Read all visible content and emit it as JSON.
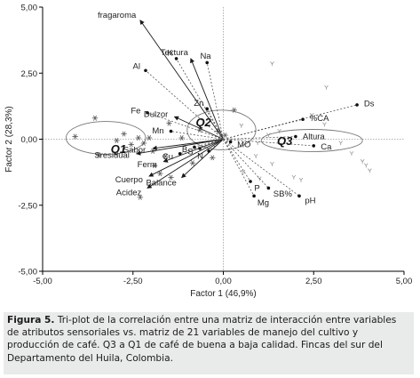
{
  "chart_data": {
    "type": "scatter",
    "title": "",
    "xlabel": "Factor 1 (46,9%)",
    "ylabel": "Factor 2 (28,3%)",
    "xlim": [
      -5.0,
      5.0
    ],
    "ylim": [
      -5.0,
      5.0
    ],
    "xticks": [
      "-5,00",
      "-2,50",
      "0,00",
      "2,50",
      "5,00"
    ],
    "yticks": [
      "5,00",
      "2,50",
      "0,00",
      "-2,50",
      "-5,00"
    ],
    "grid": false,
    "reference_lines": [
      0
    ],
    "colors": {
      "axes": "#000000",
      "reference": "#9a9a9a",
      "arrows": "#1a1a1a",
      "points": "#555555",
      "ellipse": "#777777"
    },
    "variables_solid": [
      {
        "label": "fragaroma",
        "x": -2.3,
        "y": 4.5
      },
      {
        "label": "Textura",
        "x": -0.9,
        "y": 3.05
      },
      {
        "label": "Ferm",
        "x": -1.65,
        "y": -0.85
      },
      {
        "label": "Cuerpo",
        "x": -2.05,
        "y": -1.4
      },
      {
        "label": "Balance",
        "x": -1.15,
        "y": -1.45
      },
      {
        "label": "Dulzor",
        "x": -1.35,
        "y": 0.85
      },
      {
        "label": "Acidez",
        "x": -2.1,
        "y": -1.85
      },
      {
        "label": "Sresidual",
        "x": -2.4,
        "y": -0.55
      },
      {
        "label": "Sabor",
        "x": -1.95,
        "y": -0.35
      }
    ],
    "variables_dashed": [
      {
        "label": "Ds",
        "x": 3.7,
        "y": 1.3
      },
      {
        "label": "%CA",
        "x": 2.2,
        "y": 0.75
      },
      {
        "label": "Altura",
        "x": 2.0,
        "y": 0.1
      },
      {
        "label": "Ca",
        "x": 2.5,
        "y": -0.25
      },
      {
        "label": "pH",
        "x": 2.1,
        "y": -2.15
      },
      {
        "label": "SB%",
        "x": 1.25,
        "y": -1.85
      },
      {
        "label": "Mg",
        "x": 0.85,
        "y": -2.15
      },
      {
        "label": "P",
        "x": 0.75,
        "y": -1.6
      },
      {
        "label": "Al",
        "x": -2.15,
        "y": 2.6
      },
      {
        "label": "K",
        "x": -1.3,
        "y": 3.05
      },
      {
        "label": "Na",
        "x": -0.45,
        "y": 2.9
      },
      {
        "label": "Zn",
        "x": -0.45,
        "y": 1.15
      },
      {
        "label": "Fe",
        "x": -2.1,
        "y": 1.0
      },
      {
        "label": "Mn",
        "x": -1.45,
        "y": 0.3
      },
      {
        "label": "MO",
        "x": 0.2,
        "y": -0.1
      },
      {
        "label": "N",
        "x": -0.4,
        "y": -0.45
      },
      {
        "label": "S",
        "x": -0.65,
        "y": -0.35
      },
      {
        "label": "B",
        "x": -0.8,
        "y": -0.3
      },
      {
        "label": "Cu",
        "x": -1.2,
        "y": -0.55
      }
    ],
    "label_offsets_note": "",
    "cases_star": [
      {
        "x": -4.1,
        "y": 0.1
      },
      {
        "x": -3.55,
        "y": 0.8
      },
      {
        "x": -3.45,
        "y": -0.6
      },
      {
        "x": -2.75,
        "y": 0.2
      },
      {
        "x": -2.55,
        "y": -0.2
      },
      {
        "x": -2.35,
        "y": 0.05
      },
      {
        "x": -2.2,
        "y": -0.15
      },
      {
        "x": -2.05,
        "y": 0.05
      },
      {
        "x": -1.95,
        "y": -0.45
      },
      {
        "x": -1.9,
        "y": -1.0
      },
      {
        "x": -1.75,
        "y": -1.3
      },
      {
        "x": -1.6,
        "y": -0.65
      },
      {
        "x": -1.5,
        "y": 0.6
      },
      {
        "x": -2.95,
        "y": -0.05
      },
      {
        "x": -2.3,
        "y": -2.2
      },
      {
        "x": -1.45,
        "y": -1.45
      },
      {
        "x": -0.85,
        "y": -0.9
      },
      {
        "x": 0.3,
        "y": 1.1
      },
      {
        "x": 0.05,
        "y": 0.15
      },
      {
        "x": -0.65,
        "y": 0.35
      },
      {
        "x": -0.15,
        "y": 0.3
      },
      {
        "x": -0.3,
        "y": -0.7
      },
      {
        "x": -1.15,
        "y": 0.05
      }
    ],
    "cases_y": [
      {
        "x": 1.35,
        "y": 2.85
      },
      {
        "x": 2.85,
        "y": 1.95
      },
      {
        "x": 1.25,
        "y": 0.15
      },
      {
        "x": 1.55,
        "y": 0.3
      },
      {
        "x": 2.45,
        "y": 0.9
      },
      {
        "x": 2.8,
        "y": 0.55
      },
      {
        "x": 3.25,
        "y": -0.15
      },
      {
        "x": 3.55,
        "y": -0.55
      },
      {
        "x": 3.85,
        "y": -0.85
      },
      {
        "x": 3.95,
        "y": -1.0
      },
      {
        "x": 4.05,
        "y": -1.2
      },
      {
        "x": 2.15,
        "y": -1.55
      },
      {
        "x": 1.35,
        "y": -0.95
      },
      {
        "x": 0.9,
        "y": -0.65
      },
      {
        "x": 0.95,
        "y": -0.15
      },
      {
        "x": 0.5,
        "y": 0.5
      },
      {
        "x": 1.95,
        "y": -1.45
      },
      {
        "x": 0.55,
        "y": -1.25
      },
      {
        "x": 1.0,
        "y": -1.5
      }
    ],
    "groups": [
      {
        "label": "Q1",
        "cx": -3.25,
        "cy": 0.05,
        "rx": 1.1,
        "ry": 0.62,
        "rot": 0,
        "labelx": -2.9,
        "labely": -0.35
      },
      {
        "label": "Q2",
        "cx": -0.05,
        "cy": 0.35,
        "rx": 0.95,
        "ry": 0.75,
        "rot": 0,
        "labelx": -0.55,
        "labely": 0.65
      },
      {
        "label": "Q3",
        "cx": 2.45,
        "cy": -0.05,
        "rx": 1.4,
        "ry": 0.42,
        "rot": 0,
        "labelx": 1.7,
        "labely": -0.05
      }
    ]
  },
  "caption": {
    "figure_label": "Figura 5.",
    "text": " Tri-plot de la correlación entre una matriz de interacción entre variables de atributos sensoriales vs. matriz de 21 variables de manejo del cultivo y producción de café. Q3 a Q1 de café de buena a baja calidad. Fincas del sur del Departamento del Huila, Colombia."
  }
}
